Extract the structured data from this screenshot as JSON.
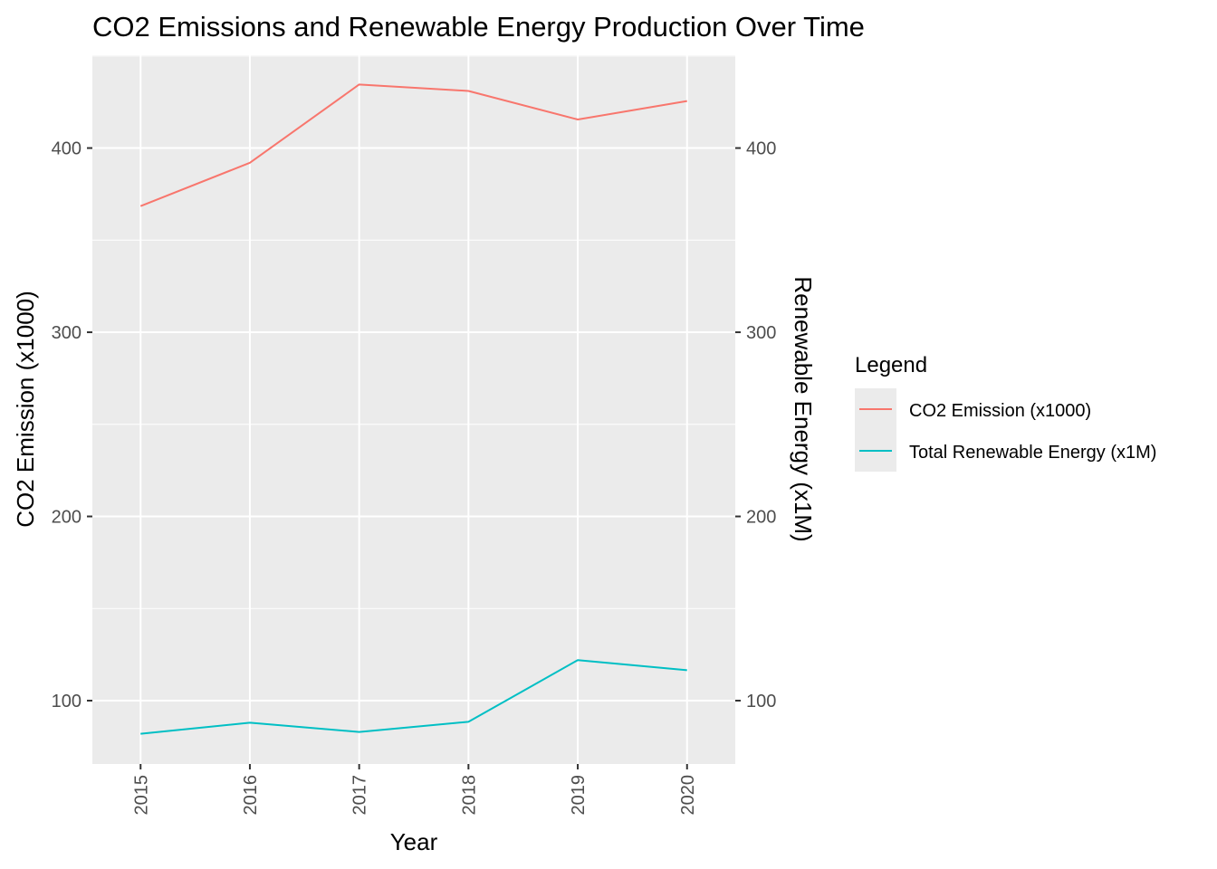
{
  "chart_data": {
    "type": "line",
    "title": "CO2 Emissions and Renewable Energy Production Over Time",
    "xlabel": "Year",
    "ylabel": "CO2 Emission (x1000)",
    "y2label": "Renewable Energy (x1M)",
    "x": [
      2015,
      2016,
      2017,
      2018,
      2019,
      2020
    ],
    "x_tick_labels": [
      "2015",
      "2016",
      "2017",
      "2018",
      "2019",
      "2020"
    ],
    "y_ticks": [
      100,
      200,
      300,
      400
    ],
    "y_tick_labels": [
      "100",
      "200",
      "300",
      "400"
    ],
    "y2_ticks": [
      100,
      200,
      300,
      400
    ],
    "y2_tick_labels": [
      "100",
      "200",
      "300",
      "400"
    ],
    "ylim": [
      65.6,
      450.4
    ],
    "grid": true,
    "legend": {
      "title": "Legend",
      "position": "right"
    },
    "series": [
      {
        "name": "CO2 Emission (x1000)",
        "color": "#F8766D",
        "values": [
          368.5,
          392.0,
          434.5,
          431.0,
          415.5,
          425.5
        ]
      },
      {
        "name": "Total Renewable Energy (x1M)",
        "color": "#00BFC4",
        "values": [
          82.0,
          88.0,
          83.0,
          88.5,
          122.0,
          116.5
        ]
      }
    ],
    "colors": {
      "panel_background": "#EBEBEB",
      "grid_line": "#FFFFFF",
      "tick_text": "#4D4D4D",
      "tick_mark": "#333333"
    }
  }
}
